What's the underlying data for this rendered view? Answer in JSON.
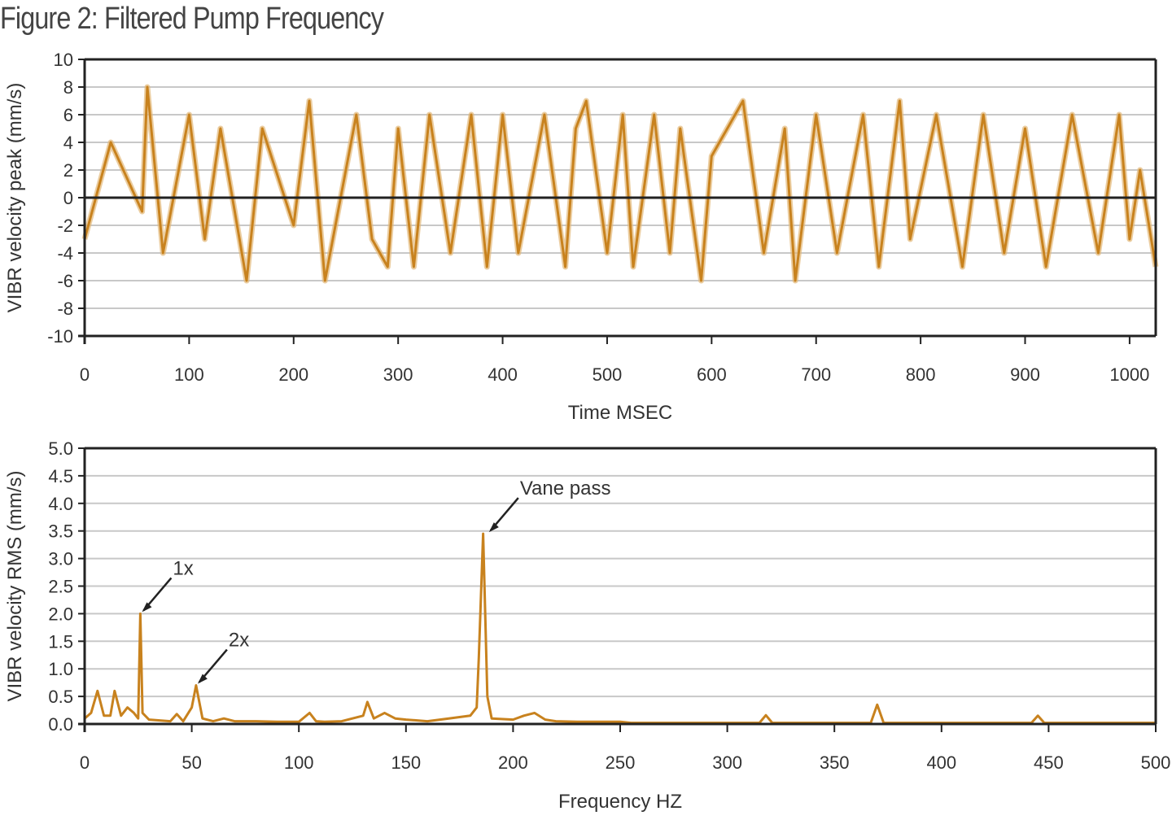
{
  "title": "Figure 2: Filtered Pump Frequency",
  "colors": {
    "series": "#c8821e",
    "series_light": "#e3b878",
    "grid": "#c8c8c8",
    "frame": "#222222"
  },
  "chart_data": [
    {
      "type": "line",
      "xlabel": "Time MSEC",
      "ylabel": "VIBR velocity peak (mm/s)",
      "xlim": [
        0,
        1025
      ],
      "ylim": [
        -10,
        10
      ],
      "xticks": [
        "0",
        "100",
        "200",
        "300",
        "400",
        "500",
        "600",
        "700",
        "800",
        "900",
        "1000"
      ],
      "yticks": [
        "10",
        "8",
        "6",
        "4",
        "2",
        "0",
        "-2",
        "-4",
        "-6",
        "-8",
        "-10"
      ],
      "grid": true,
      "series": [
        {
          "x": [
            0,
            25,
            55,
            60,
            75,
            100,
            115,
            130,
            155,
            170,
            200,
            215,
            230,
            260,
            275,
            290,
            300,
            315,
            330,
            350,
            370,
            385,
            400,
            415,
            440,
            460,
            470,
            480,
            500,
            515,
            525,
            545,
            560,
            570,
            590,
            600,
            630,
            650,
            670,
            680,
            700,
            720,
            745,
            760,
            780,
            790,
            815,
            840,
            860,
            880,
            900,
            920,
            945,
            970,
            990,
            1000,
            1010,
            1025
          ],
          "y": [
            -3,
            4,
            -1,
            8,
            -4,
            6,
            -3,
            5,
            -6,
            5,
            -2,
            7,
            -6,
            6,
            -3,
            -5,
            5,
            -5,
            6,
            -4,
            6,
            -5,
            6,
            -4,
            6,
            -5,
            5,
            7,
            -4,
            6,
            -5,
            6,
            -4,
            5,
            -6,
            3,
            7,
            -4,
            5,
            -6,
            6,
            -4,
            6,
            -5,
            7,
            -3,
            6,
            -5,
            6,
            -4,
            5,
            -5,
            6,
            -4,
            6,
            -3,
            2,
            -5
          ]
        }
      ]
    },
    {
      "type": "line",
      "xlabel": "Frequency HZ",
      "ylabel": "VIBR velocity RMS (mm/s)",
      "xlim": [
        0,
        500
      ],
      "ylim": [
        0,
        5.0
      ],
      "xticks": [
        "0",
        "50",
        "100",
        "150",
        "200",
        "250",
        "300",
        "350",
        "400",
        "450",
        "500"
      ],
      "yticks": [
        "5.0",
        "4.5",
        "4.0",
        "3.5",
        "3.0",
        "2.5",
        "2.0",
        "1.5",
        "1.0",
        "0.5",
        "0.0"
      ],
      "grid": true,
      "series": [
        {
          "x": [
            0,
            3,
            6,
            9,
            12,
            14,
            17,
            20,
            23,
            25,
            26,
            27,
            30,
            40,
            43,
            46,
            50,
            52,
            55,
            60,
            65,
            70,
            80,
            90,
            100,
            105,
            108,
            112,
            120,
            130,
            132,
            135,
            140,
            145,
            150,
            160,
            170,
            180,
            183,
            184,
            186,
            188,
            190,
            200,
            205,
            210,
            215,
            220,
            230,
            240,
            250,
            255,
            300,
            315,
            318,
            321,
            340,
            367,
            370,
            373,
            400,
            442,
            445,
            448,
            500
          ],
          "y": [
            0.1,
            0.2,
            0.6,
            0.15,
            0.15,
            0.6,
            0.15,
            0.3,
            0.2,
            0.1,
            2.0,
            0.2,
            0.08,
            0.05,
            0.18,
            0.05,
            0.3,
            0.7,
            0.1,
            0.05,
            0.1,
            0.05,
            0.05,
            0.04,
            0.04,
            0.2,
            0.05,
            0.04,
            0.05,
            0.15,
            0.4,
            0.1,
            0.2,
            0.1,
            0.08,
            0.05,
            0.1,
            0.15,
            0.3,
            1.2,
            3.45,
            0.5,
            0.1,
            0.08,
            0.15,
            0.2,
            0.08,
            0.05,
            0.04,
            0.04,
            0.04,
            0.02,
            0.02,
            0.02,
            0.16,
            0.02,
            0.02,
            0.02,
            0.35,
            0.02,
            0.02,
            0.02,
            0.15,
            0.02,
            0.02
          ]
        }
      ],
      "annotations": [
        {
          "text": "1x",
          "x": 26,
          "y": 2.0
        },
        {
          "text": "2x",
          "x": 52,
          "y": 0.7
        },
        {
          "text": "Vane pass",
          "x": 188,
          "y": 3.45
        }
      ]
    }
  ]
}
